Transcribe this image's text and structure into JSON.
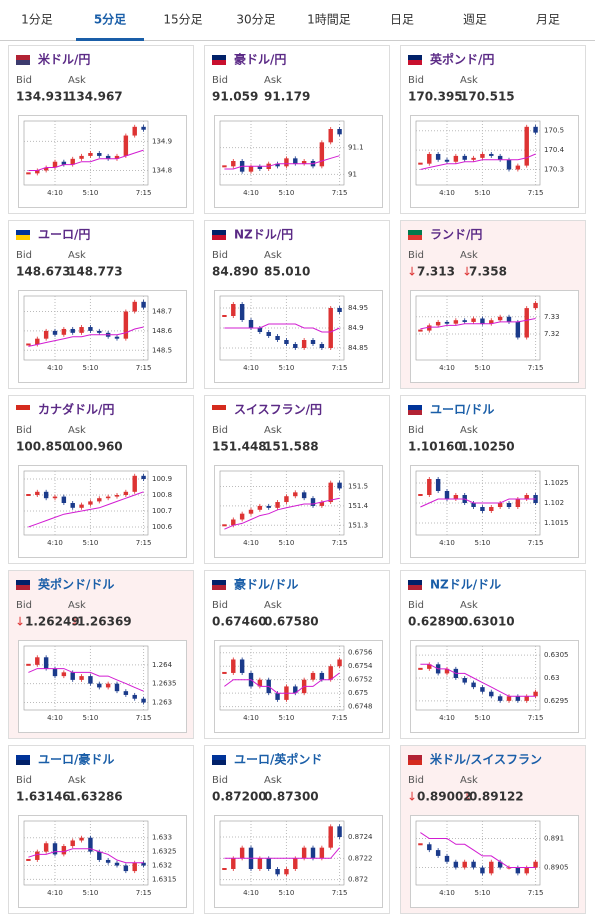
{
  "tabs": [
    "1分足",
    "5分足",
    "15分足",
    "30分足",
    "1時間足",
    "日足",
    "週足",
    "月足"
  ],
  "active_tab": 1,
  "labels": {
    "bid": "Bid",
    "ask": "Ask"
  },
  "cards": [
    {
      "pair": "米ドル/円",
      "title_color": "#5b2a86",
      "flag": [
        "#b22234",
        "#3c3b6e"
      ],
      "alert": false,
      "bid": "134.931",
      "ask": "134.967",
      "chart": {
        "type": "candlestick",
        "close": [
          134.79,
          134.8,
          134.81,
          134.83,
          134.82,
          134.84,
          134.85,
          134.86,
          134.85,
          134.84,
          134.85,
          134.92,
          134.95,
          134.94
        ],
        "ma": [
          134.8,
          134.8,
          134.81,
          134.81,
          134.82,
          134.82,
          134.83,
          134.83,
          134.84,
          134.84,
          134.84,
          134.85,
          134.86,
          134.87
        ],
        "ylim": [
          134.75,
          134.97
        ],
        "yticks": [
          134.8,
          134.9
        ],
        "xticks": [
          {
            "value": 3,
            "label": "4:10"
          },
          {
            "value": 7,
            "label": "5:10"
          },
          {
            "value": 13,
            "label": "7:15"
          }
        ]
      }
    },
    {
      "pair": "豪ドル/円",
      "title_color": "#5b2a86",
      "flag": [
        "#012169",
        "#c8102e"
      ],
      "alert": false,
      "bid": "91.059",
      "ask": "91.179",
      "chart": {
        "type": "candlestick",
        "close": [
          91.03,
          91.05,
          91.01,
          91.03,
          91.02,
          91.04,
          91.03,
          91.06,
          91.04,
          91.05,
          91.03,
          91.12,
          91.17,
          91.15
        ],
        "ma": [
          91.02,
          91.02,
          91.03,
          91.03,
          91.03,
          91.03,
          91.04,
          91.04,
          91.04,
          91.04,
          91.04,
          91.05,
          91.06,
          91.07
        ],
        "ylim": [
          90.96,
          91.2
        ],
        "yticks": [
          91,
          91.1
        ],
        "xticks": [
          {
            "value": 3,
            "label": "4:10"
          },
          {
            "value": 7,
            "label": "5:10"
          },
          {
            "value": 13,
            "label": "7:15"
          }
        ]
      }
    },
    {
      "pair": "英ポンド/円",
      "title_color": "#5b2a86",
      "flag": [
        "#012169",
        "#c8102e"
      ],
      "alert": false,
      "bid": "170.395",
      "ask": "170.515",
      "chart": {
        "type": "candlestick",
        "close": [
          170.33,
          170.38,
          170.35,
          170.34,
          170.37,
          170.35,
          170.36,
          170.38,
          170.37,
          170.35,
          170.3,
          170.32,
          170.52,
          170.49
        ],
        "ma": [
          170.3,
          170.31,
          170.32,
          170.33,
          170.33,
          170.34,
          170.34,
          170.35,
          170.35,
          170.35,
          170.35,
          170.35,
          170.36,
          170.38
        ],
        "ylim": [
          170.22,
          170.55
        ],
        "yticks": [
          170.3,
          170.4,
          170.5
        ],
        "xticks": [
          {
            "value": 3,
            "label": "4:10"
          },
          {
            "value": 7,
            "label": "5:10"
          },
          {
            "value": 13,
            "label": "7:15"
          }
        ]
      }
    },
    {
      "pair": "ユーロ/円",
      "title_color": "#5b2a86",
      "flag": [
        "#003399",
        "#ffcc00"
      ],
      "alert": false,
      "bid": "148.673",
      "ask": "148.773",
      "chart": {
        "type": "candlestick",
        "close": [
          148.53,
          148.56,
          148.6,
          148.58,
          148.61,
          148.59,
          148.62,
          148.6,
          148.59,
          148.57,
          148.56,
          148.7,
          148.75,
          148.72
        ],
        "ma": [
          148.52,
          148.53,
          148.54,
          148.55,
          148.56,
          148.57,
          148.57,
          148.58,
          148.58,
          148.58,
          148.58,
          148.59,
          148.61,
          148.62
        ],
        "ylim": [
          148.45,
          148.78
        ],
        "yticks": [
          148.5,
          148.6,
          148.7
        ],
        "xticks": [
          {
            "value": 3,
            "label": "4:10"
          },
          {
            "value": 7,
            "label": "5:10"
          },
          {
            "value": 13,
            "label": "7:15"
          }
        ]
      }
    },
    {
      "pair": "NZドル/円",
      "title_color": "#5b2a86",
      "flag": [
        "#012169",
        "#c8102e"
      ],
      "alert": false,
      "bid": "84.890",
      "ask": "85.010",
      "chart": {
        "type": "candlestick",
        "close": [
          84.93,
          84.96,
          84.92,
          84.9,
          84.89,
          84.88,
          84.87,
          84.86,
          84.85,
          84.87,
          84.86,
          84.85,
          84.95,
          84.94
        ],
        "ma": [
          84.9,
          84.9,
          84.9,
          84.9,
          84.9,
          84.91,
          84.91,
          84.91,
          84.91,
          84.9,
          84.9,
          84.89,
          84.89,
          84.9
        ],
        "ylim": [
          84.82,
          84.98
        ],
        "yticks": [
          84.85,
          84.9,
          84.95
        ],
        "xticks": [
          {
            "value": 3,
            "label": "4:10"
          },
          {
            "value": 7,
            "label": "5:10"
          },
          {
            "value": 13,
            "label": "7:15"
          }
        ]
      }
    },
    {
      "pair": "ランド/円",
      "title_color": "#5b2a86",
      "flag": [
        "#007a4d",
        "#de3831"
      ],
      "alert": true,
      "trend": "↓",
      "bid": "7.313",
      "ask": "7.358",
      "chart": {
        "type": "candlestick",
        "close": [
          7.322,
          7.325,
          7.327,
          7.326,
          7.328,
          7.327,
          7.329,
          7.326,
          7.328,
          7.33,
          7.327,
          7.318,
          7.335,
          7.338
        ],
        "ma": [
          7.323,
          7.324,
          7.324,
          7.325,
          7.325,
          7.326,
          7.326,
          7.326,
          7.326,
          7.327,
          7.327,
          7.327,
          7.328,
          7.329
        ],
        "ylim": [
          7.305,
          7.342
        ],
        "yticks": [
          7.32,
          7.33
        ],
        "xticks": [
          {
            "value": 3,
            "label": "4:10"
          },
          {
            "value": 7,
            "label": "5:10"
          },
          {
            "value": 13,
            "label": "7:15"
          }
        ]
      }
    },
    {
      "pair": "カナダドル/円",
      "title_color": "#5b2a86",
      "flag": [
        "#d52b1e",
        "#ffffff"
      ],
      "alert": false,
      "bid": "100.850",
      "ask": "100.960",
      "chart": {
        "type": "candlestick",
        "close": [
          100.8,
          100.82,
          100.78,
          100.79,
          100.75,
          100.72,
          100.74,
          100.76,
          100.78,
          100.79,
          100.8,
          100.82,
          100.92,
          100.9
        ],
        "ma": [
          100.6,
          100.62,
          100.64,
          100.66,
          100.68,
          100.69,
          100.7,
          100.71,
          100.72,
          100.74,
          100.76,
          100.78,
          100.8,
          100.82
        ],
        "ylim": [
          100.55,
          100.95
        ],
        "yticks": [
          100.6,
          100.7,
          100.8,
          100.9
        ],
        "xticks": [
          {
            "value": 3,
            "label": "4:10"
          },
          {
            "value": 7,
            "label": "5:10"
          },
          {
            "value": 13,
            "label": "7:15"
          }
        ]
      }
    },
    {
      "pair": "スイスフラン/円",
      "title_color": "#5b2a86",
      "flag": [
        "#d52b1e",
        "#ffffff"
      ],
      "alert": false,
      "bid": "151.448",
      "ask": "151.588",
      "chart": {
        "type": "candlestick",
        "close": [
          151.3,
          151.33,
          151.36,
          151.38,
          151.4,
          151.39,
          151.42,
          151.45,
          151.47,
          151.44,
          151.4,
          151.42,
          151.52,
          151.49
        ],
        "ma": [
          151.28,
          151.3,
          151.31,
          151.33,
          151.35,
          151.36,
          151.38,
          151.39,
          151.4,
          151.41,
          151.41,
          151.42,
          151.43,
          151.44
        ],
        "ylim": [
          151.25,
          151.58
        ],
        "yticks": [
          151.3,
          151.4,
          151.5
        ],
        "xticks": [
          {
            "value": 3,
            "label": "4:10"
          },
          {
            "value": 7,
            "label": "5:10"
          },
          {
            "value": 13,
            "label": "7:15"
          }
        ]
      }
    },
    {
      "pair": "ユーロ/ドル",
      "title_color": "#1a5ea8",
      "flag": [
        "#003399",
        "#b22234"
      ],
      "alert": false,
      "bid": "1.10160",
      "ask": "1.10250",
      "chart": {
        "type": "candlestick",
        "close": [
          1.1022,
          1.1026,
          1.1023,
          1.1021,
          1.1022,
          1.102,
          1.1019,
          1.1018,
          1.1019,
          1.102,
          1.1019,
          1.1021,
          1.1022,
          1.102
        ],
        "ma": [
          1.1019,
          1.102,
          1.1021,
          1.1021,
          1.1021,
          1.1021,
          1.102,
          1.102,
          1.102,
          1.102,
          1.1021,
          1.1021,
          1.1021,
          1.1021
        ],
        "ylim": [
          1.1012,
          1.1028
        ],
        "yticks": [
          1.1015,
          1.102,
          1.1025
        ],
        "xticks": [
          {
            "value": 3,
            "label": "4:10"
          },
          {
            "value": 7,
            "label": "5:10"
          },
          {
            "value": 13,
            "label": "7:15"
          }
        ]
      }
    },
    {
      "pair": "英ポンド/ドル",
      "title_color": "#1a5ea8",
      "flag": [
        "#012169",
        "#b22234"
      ],
      "alert": true,
      "trend": "↓",
      "bid": "1.26249",
      "ask": "1.26369",
      "chart": {
        "type": "candlestick",
        "close": [
          1.264,
          1.2642,
          1.2639,
          1.2637,
          1.2638,
          1.2636,
          1.2637,
          1.2635,
          1.2634,
          1.2635,
          1.2633,
          1.2632,
          1.2631,
          1.263
        ],
        "ma": [
          1.2638,
          1.2639,
          1.2639,
          1.2639,
          1.2639,
          1.2638,
          1.2638,
          1.2638,
          1.2637,
          1.2637,
          1.2636,
          1.2635,
          1.2634,
          1.2633
        ],
        "ylim": [
          1.2628,
          1.2645
        ],
        "yticks": [
          1.263,
          1.2635,
          1.264
        ],
        "xticks": [
          {
            "value": 3,
            "label": "4:10"
          },
          {
            "value": 7,
            "label": "5:10"
          },
          {
            "value": 13,
            "label": "7:15"
          }
        ]
      }
    },
    {
      "pair": "豪ドル/ドル",
      "title_color": "#1a5ea8",
      "flag": [
        "#012169",
        "#b22234"
      ],
      "alert": false,
      "bid": "0.67460",
      "ask": "0.67580",
      "chart": {
        "type": "candlestick",
        "close": [
          0.6753,
          0.6755,
          0.6753,
          0.6751,
          0.6752,
          0.675,
          0.6749,
          0.6751,
          0.675,
          0.6752,
          0.6753,
          0.6752,
          0.6754,
          0.6755
        ],
        "ma": [
          0.6751,
          0.6752,
          0.6752,
          0.6752,
          0.6751,
          0.6751,
          0.675,
          0.675,
          0.675,
          0.6751,
          0.6751,
          0.6752,
          0.6752,
          0.6753
        ],
        "ylim": [
          0.67475,
          0.6757
        ],
        "yticks": [
          0.6748,
          0.675,
          0.6752,
          0.6754,
          0.6756
        ],
        "xticks": [
          {
            "value": 3,
            "label": "4:10"
          },
          {
            "value": 7,
            "label": "5:10"
          },
          {
            "value": 13,
            "label": "7:15"
          }
        ]
      }
    },
    {
      "pair": "NZドル/ドル",
      "title_color": "#1a5ea8",
      "flag": [
        "#012169",
        "#b22234"
      ],
      "alert": false,
      "bid": "0.62890",
      "ask": "0.63010",
      "chart": {
        "type": "candlestick",
        "close": [
          0.6302,
          0.6303,
          0.6301,
          0.6302,
          0.63,
          0.6299,
          0.6298,
          0.6297,
          0.6296,
          0.6295,
          0.6296,
          0.6295,
          0.6296,
          0.6297
        ],
        "ma": [
          0.6303,
          0.6303,
          0.6302,
          0.6302,
          0.6301,
          0.6301,
          0.63,
          0.6299,
          0.6298,
          0.6297,
          0.6296,
          0.6296,
          0.6296,
          0.6296
        ],
        "ylim": [
          0.6293,
          0.6307
        ],
        "yticks": [
          0.6295,
          0.63,
          0.6305
        ],
        "xticks": [
          {
            "value": 3,
            "label": "4:10"
          },
          {
            "value": 7,
            "label": "5:10"
          },
          {
            "value": 13,
            "label": "7:15"
          }
        ]
      }
    },
    {
      "pair": "ユーロ/豪ドル",
      "title_color": "#1a5ea8",
      "flag": [
        "#003399",
        "#012169"
      ],
      "alert": false,
      "bid": "1.63146",
      "ask": "1.63286",
      "chart": {
        "type": "candlestick",
        "close": [
          1.6322,
          1.6325,
          1.6328,
          1.6324,
          1.6327,
          1.6329,
          1.633,
          1.6325,
          1.6322,
          1.6321,
          1.632,
          1.6318,
          1.6321,
          1.632
        ],
        "ma": [
          1.6323,
          1.6324,
          1.6324,
          1.6325,
          1.6325,
          1.6326,
          1.6326,
          1.6326,
          1.6325,
          1.6324,
          1.6322,
          1.6321,
          1.6321,
          1.6321
        ],
        "ylim": [
          1.6313,
          1.6336
        ],
        "yticks": [
          1.6315,
          1.632,
          1.6325,
          1.633
        ],
        "xticks": [
          {
            "value": 3,
            "label": "4:10"
          },
          {
            "value": 7,
            "label": "5:10"
          },
          {
            "value": 13,
            "label": "7:15"
          }
        ]
      }
    },
    {
      "pair": "ユーロ/英ポンド",
      "title_color": "#1a5ea8",
      "flag": [
        "#003399",
        "#012169"
      ],
      "alert": false,
      "bid": "0.87200",
      "ask": "0.87300",
      "chart": {
        "type": "candlestick",
        "close": [
          0.8721,
          0.8722,
          0.8723,
          0.8721,
          0.8722,
          0.8721,
          0.87205,
          0.8721,
          0.8722,
          0.8723,
          0.8722,
          0.8723,
          0.8725,
          0.8724
        ],
        "ma": [
          0.8722,
          0.8722,
          0.8722,
          0.8722,
          0.8722,
          0.8722,
          0.8722,
          0.8722,
          0.8722,
          0.8722,
          0.8722,
          0.8722,
          0.8722,
          0.8723
        ],
        "ylim": [
          0.87195,
          0.87255
        ],
        "yticks": [
          0.872,
          0.8722,
          0.8724
        ],
        "xticks": [
          {
            "value": 3,
            "label": "4:10"
          },
          {
            "value": 7,
            "label": "5:10"
          },
          {
            "value": 13,
            "label": "7:15"
          }
        ]
      }
    },
    {
      "pair": "米ドル/スイスフラン",
      "title_color": "#1a5ea8",
      "flag": [
        "#b22234",
        "#d52b1e"
      ],
      "alert": true,
      "trend": "↓",
      "bid": "0.89002",
      "ask": "0.89122",
      "chart": {
        "type": "candlestick",
        "close": [
          0.8909,
          0.8908,
          0.8907,
          0.8906,
          0.8905,
          0.8906,
          0.8905,
          0.8904,
          0.8906,
          0.8905,
          0.8905,
          0.8904,
          0.8905,
          0.8906
        ],
        "ma": [
          0.8911,
          0.891,
          0.891,
          0.891,
          0.8909,
          0.8909,
          0.8908,
          0.8907,
          0.8907,
          0.8906,
          0.8905,
          0.8905,
          0.8905,
          0.8905
        ],
        "ylim": [
          0.8902,
          0.8913
        ],
        "yticks": [
          0.8905,
          0.891
        ],
        "xticks": [
          {
            "value": 3,
            "label": "4:10"
          },
          {
            "value": 7,
            "label": "5:10"
          },
          {
            "value": 13,
            "label": "7:15"
          }
        ]
      }
    }
  ]
}
